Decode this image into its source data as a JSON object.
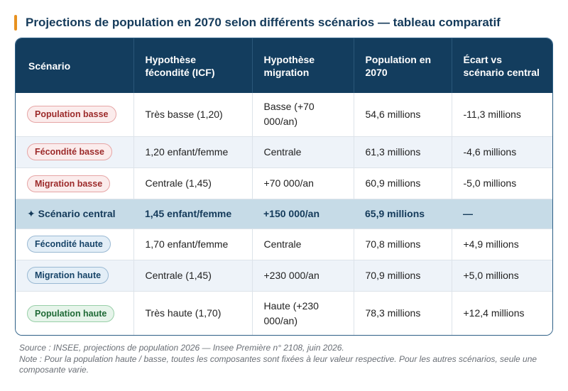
{
  "title": "Projections de population en 2070 selon différents scénarios — tableau comparatif",
  "colors": {
    "title_accent": "#e8911f",
    "header_bg": "#133d5e",
    "central_row_bg": "#c6dbe7",
    "low_pill": "#9c2a2a",
    "high_pill": "#174468",
    "green_pill": "#1f6a36"
  },
  "table": {
    "headers": {
      "scenario": "Scénario",
      "fertility": "Hypothèse fécondité (ICF)",
      "migration": "Hypothèse migration",
      "population": "Population en 2070",
      "gap": "Écart vs scénario central"
    },
    "rows": [
      {
        "scenario": "Population basse",
        "fertility": "Très basse (1,20)",
        "migration": "Basse (+70 000/an)",
        "population": "54,6 millions",
        "gap": "-11,3 millions"
      },
      {
        "scenario": "Fécondité basse",
        "fertility": "1,20 enfant/femme",
        "migration": "Centrale",
        "population": "61,3 millions",
        "gap": "-4,6 millions"
      },
      {
        "scenario": "Migration basse",
        "fertility": "Centrale (1,45)",
        "migration": "+70 000/an",
        "population": "60,9 millions",
        "gap": "-5,0 millions"
      },
      {
        "scenario": "✦ Scénario central",
        "fertility": "1,45 enfant/femme",
        "migration": "+150 000/an",
        "population": "65,9 millions",
        "gap": "—"
      },
      {
        "scenario": "Fécondité haute",
        "fertility": "1,70 enfant/femme",
        "migration": "Centrale",
        "population": "70,8 millions",
        "gap": "+4,9 millions"
      },
      {
        "scenario": "Migration haute",
        "fertility": "Centrale (1,45)",
        "migration": "+230 000/an",
        "population": "70,9 millions",
        "gap": "+5,0 millions"
      },
      {
        "scenario": "Population haute",
        "fertility": "Très haute (1,70)",
        "migration": "Haute (+230 000/an)",
        "population": "78,3 millions",
        "gap": "+12,4 millions"
      }
    ]
  },
  "footnote": {
    "source": "Source : INSEE, projections de population 2026 — Insee Première n° 2108, juin 2026.",
    "note": "Note : Pour la population haute / basse, toutes les composantes sont fixées à leur valeur respective. Pour les autres scénarios, seule une composante varie."
  }
}
